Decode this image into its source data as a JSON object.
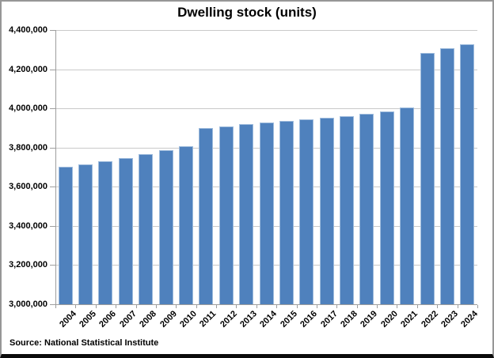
{
  "chart_data": {
    "type": "bar",
    "title": "Dwelling stock (units)",
    "source": "Source: National Statistical Institute",
    "categories": [
      "2004",
      "2005",
      "2006",
      "2007",
      "2008",
      "2009",
      "2010",
      "2011",
      "2012",
      "2013",
      "2014",
      "2015",
      "2016",
      "2017",
      "2018",
      "2019",
      "2020",
      "2021",
      "2022",
      "2023",
      "2024"
    ],
    "values": [
      3704000,
      3716000,
      3729000,
      3745000,
      3767000,
      3787000,
      3805000,
      3900000,
      3909000,
      3918000,
      3927000,
      3935000,
      3944000,
      3953000,
      3961000,
      3971000,
      3986000,
      4004000,
      4281000,
      4306000,
      4328000
    ],
    "xlabel": "",
    "ylabel": "",
    "ylim": [
      3000000,
      4400000
    ],
    "ytick_step": 200000,
    "ytick_labels": [
      "3,000,000",
      "3,200,000",
      "3,400,000",
      "3,600,000",
      "3,800,000",
      "4,000,000",
      "4,200,000",
      "4,400,000"
    ],
    "grid": true,
    "legend": false,
    "colors": {
      "bar_fill": "#4F81BD",
      "bar_border": "#9FBCDD",
      "gridline": "#C9C9C9",
      "axis": "#9E9E9E",
      "text": "#000000"
    }
  }
}
